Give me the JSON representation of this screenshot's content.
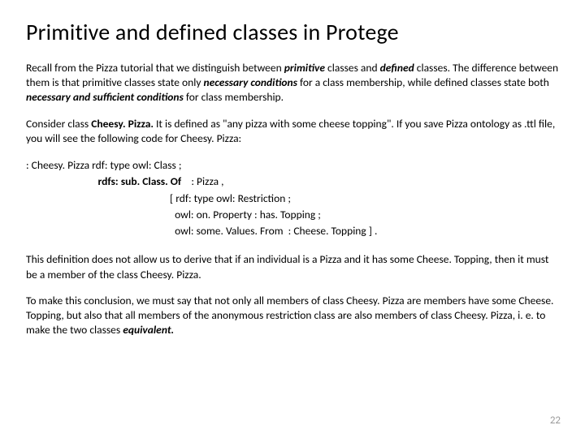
{
  "title": "Primitive and defined classes in Protege",
  "para1": {
    "t1": "Recall from the Pizza tutorial that we distinguish between ",
    "primitive": "primitive",
    "t2": " classes and ",
    "defined": "defined",
    "t3": " classes. The difference between them is that primitive classes state only ",
    "nec": "necessary conditions",
    "t4": " for a class membership, while defined classes state both ",
    "necsuf": "necessary and sufficient conditions",
    "t5": " for class membership."
  },
  "para2": {
    "t1": "Consider class ",
    "cheesy": "Cheesy. Pizza. ",
    "t2": " It is defined as \"any pizza with some cheese topping\". If you save Pizza ontology as .ttl file, you will see the following code for Cheesy. Pizza:"
  },
  "code": {
    "l1": ": Cheesy. Pizza rdf: type owl: Class ;",
    "l2_a": "                             ",
    "l2_b": "rdfs: sub. Class. Of",
    "l2_c": "    : Pizza ,",
    "l3": "                                                          [ rdf: type owl: Restriction ;",
    "l4": "                                                            owl: on. Property : has. Topping ;",
    "l5": "                                                            owl: some. Values. From  : Cheese. Topping ] ."
  },
  "para3": "This definition does not allow us to derive that if an individual is a Pizza and it has some Cheese. Topping, then it must be a member of the class Cheesy. Pizza.",
  "para4": {
    "t1": "To make this conclusion, we must say that not only all members of class Cheesy. Pizza are members have some Cheese. Topping, but also that all members of the anonymous restriction class are also members of class Cheesy. Pizza, i. e. to make the two classes ",
    "eq": "equivalent.",
    "t2": ""
  },
  "pageNumber": "22"
}
